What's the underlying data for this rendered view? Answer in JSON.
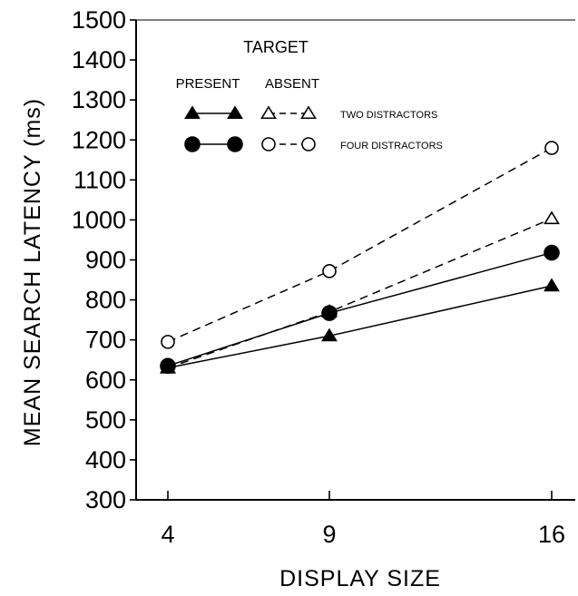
{
  "chart_data": {
    "type": "line",
    "xlabel": "DISPLAY SIZE",
    "ylabel": "MEAN SEARCH LATENCY (ms)",
    "ylim": [
      300,
      1500
    ],
    "yticks": [
      300,
      400,
      500,
      600,
      700,
      800,
      900,
      1000,
      1100,
      1200,
      1300,
      1400,
      1500
    ],
    "x": [
      4,
      9,
      16
    ],
    "grid": false,
    "legend": {
      "title": "TARGET",
      "present_label": "PRESENT",
      "absent_label": "ABSENT",
      "rows": [
        {
          "label": "TWO DISTRACTORS",
          "marker": "triangle"
        },
        {
          "label": "FOUR DISTRACTORS",
          "marker": "circle"
        }
      ],
      "placement": "top-left"
    },
    "series": [
      {
        "marker": "triangle",
        "filled": true,
        "dash": "solid",
        "values": [
          630,
          710,
          835
        ]
      },
      {
        "marker": "triangle",
        "filled": false,
        "dash": "dashed",
        "values": [
          630,
          770,
          1003
        ]
      },
      {
        "marker": "circle",
        "filled": true,
        "dash": "solid",
        "values": [
          635,
          767,
          918
        ]
      },
      {
        "marker": "circle",
        "filled": false,
        "dash": "dashed",
        "values": [
          695,
          872,
          1180
        ]
      }
    ]
  }
}
